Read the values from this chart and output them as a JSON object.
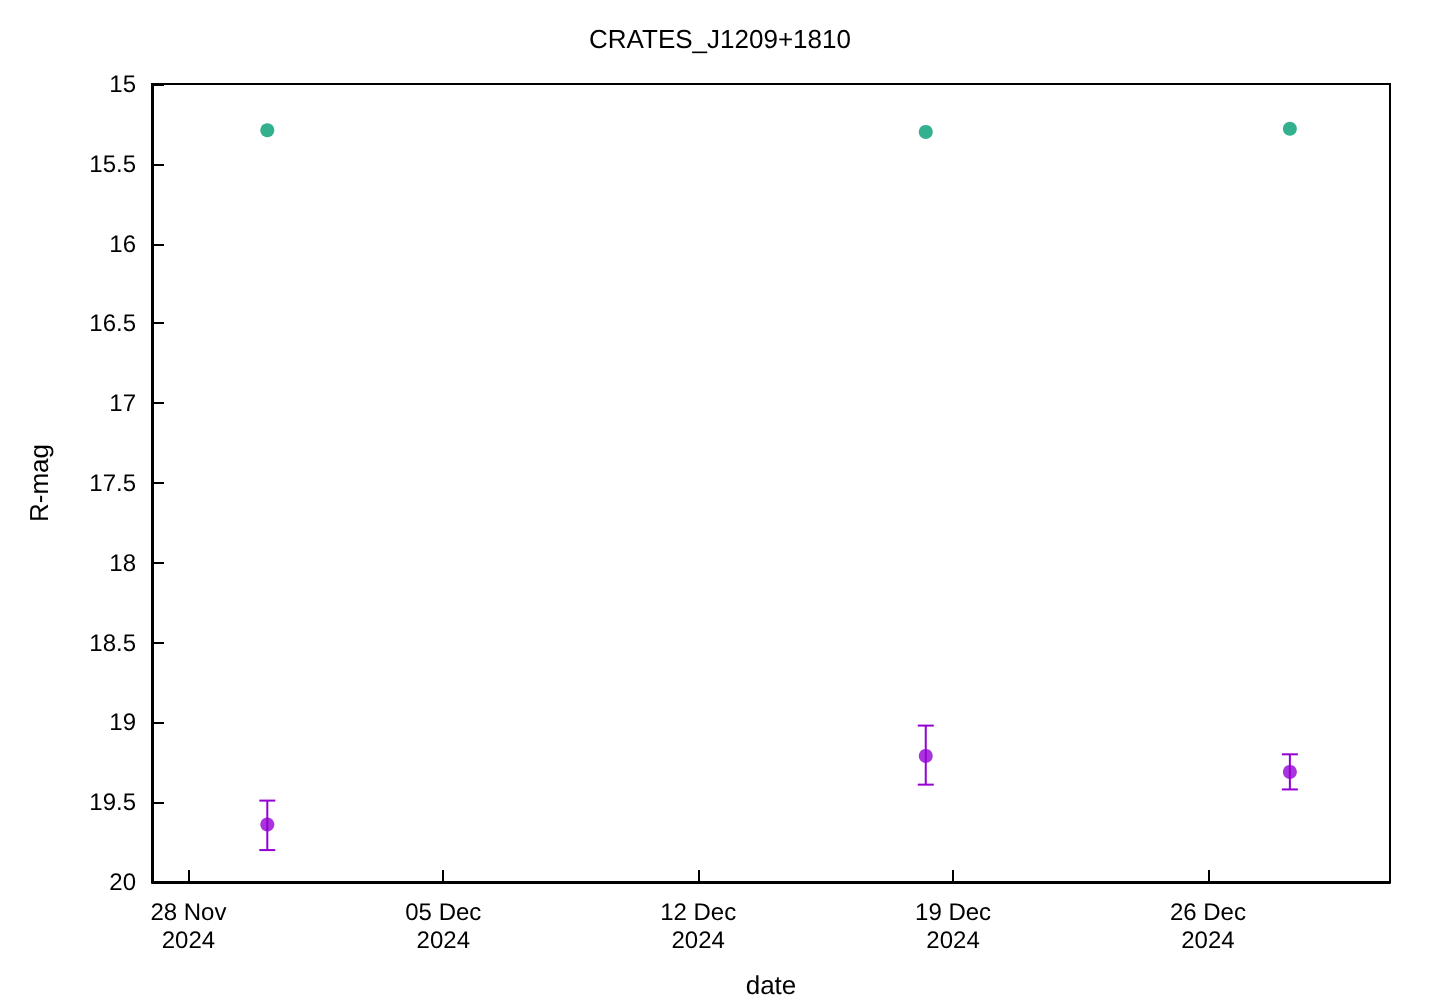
{
  "chart_data": {
    "type": "scatter",
    "title": "CRATES_J1209+1810",
    "xlabel": "date",
    "ylabel": "R-mag",
    "xlim": [
      "2024-11-27",
      "2024-12-31"
    ],
    "xticks": [
      {
        "value": "2024-11-28",
        "label": "28 Nov\n2024"
      },
      {
        "value": "2024-12-05",
        "label": "05 Dec\n2024"
      },
      {
        "value": "2024-12-12",
        "label": "12 Dec\n2024"
      },
      {
        "value": "2024-12-19",
        "label": "19 Dec\n2024"
      },
      {
        "value": "2024-12-26",
        "label": "26 Dec\n2024"
      }
    ],
    "ylim": [
      20,
      15
    ],
    "yticks": [
      15,
      15.5,
      16,
      16.5,
      17,
      17.5,
      18,
      18.5,
      19,
      19.5,
      20
    ],
    "marker": "circle",
    "series": [
      {
        "color": "#9400d3",
        "x": [
          "2024-11-30T04:00",
          "2024-12-18T06:00",
          "2024-12-28T06:00"
        ],
        "values": [
          19.64,
          19.21,
          19.31
        ],
        "errors": [
          [
            19.49,
            19.8
          ],
          [
            19.02,
            19.39
          ],
          [
            19.2,
            19.42
          ]
        ]
      },
      {
        "color": "#009e73",
        "x": [
          "2024-11-30T04:00",
          "2024-12-18T06:00",
          "2024-12-28T06:00"
        ],
        "values": [
          15.29,
          15.3,
          15.28
        ]
      }
    ]
  }
}
